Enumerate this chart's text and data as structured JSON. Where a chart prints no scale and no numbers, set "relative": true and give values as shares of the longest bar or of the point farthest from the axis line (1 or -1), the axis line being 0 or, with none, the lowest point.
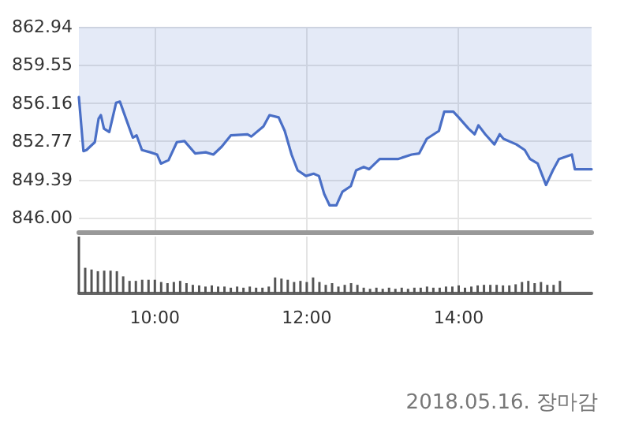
{
  "chart_data": [
    {
      "type": "line",
      "x": [
        9.0,
        9.06,
        9.1,
        9.21,
        9.26,
        9.29,
        9.33,
        9.4,
        9.49,
        9.54,
        9.63,
        9.71,
        9.76,
        9.83,
        9.94,
        10.03,
        10.08,
        10.18,
        10.29,
        10.39,
        10.53,
        10.67,
        10.77,
        10.88,
        11.0,
        11.22,
        11.27,
        11.43,
        11.51,
        11.63,
        11.71,
        11.8,
        11.88,
        11.99,
        12.09,
        12.16,
        12.23,
        12.3,
        12.39,
        12.47,
        12.58,
        12.65,
        12.75,
        12.82,
        12.96,
        13.2,
        13.38,
        13.48,
        13.58,
        13.74,
        13.81,
        13.93,
        14.0,
        14.13,
        14.21,
        14.26,
        14.35,
        14.47,
        14.54,
        14.59,
        14.76,
        14.87,
        14.94,
        15.04,
        15.15,
        15.24,
        15.32,
        15.49,
        15.53,
        15.75
      ],
      "series": [
        {
          "color": "#4a6fc6",
          "upper": [
            862.94,
            862.94,
            862.94,
            862.94,
            862.94,
            862.94,
            862.94,
            862.94,
            862.94,
            862.94,
            862.94,
            862.94,
            862.94,
            862.94,
            862.94,
            862.94,
            862.94,
            862.94,
            862.94,
            862.94,
            862.94,
            862.94,
            862.94,
            862.94,
            862.94,
            862.94,
            862.94,
            862.94,
            862.94,
            862.94,
            862.94,
            862.94,
            862.94,
            862.94,
            862.94,
            862.94,
            862.94,
            862.94,
            862.94,
            862.94,
            862.94,
            862.94,
            862.94,
            862.94,
            862.94,
            862.94,
            862.94,
            862.94,
            862.94,
            862.94,
            862.94,
            862.94,
            862.94,
            862.94,
            862.94,
            862.94,
            862.94,
            862.94,
            862.94,
            862.94,
            862.94,
            862.94,
            862.94,
            862.94,
            862.94,
            862.94,
            862.94,
            862.94,
            862.94,
            862.94
          ],
          "lower": [
            856.7,
            851.9,
            852.0,
            852.7,
            854.8,
            855.1,
            853.9,
            853.6,
            856.2,
            856.3,
            854.6,
            853.1,
            853.3,
            852.0,
            851.8,
            851.6,
            850.8,
            851.1,
            852.7,
            852.8,
            851.7,
            851.8,
            851.6,
            852.3,
            853.3,
            853.4,
            853.2,
            854.1,
            855.1,
            854.9,
            853.7,
            851.6,
            850.2,
            849.7,
            849.9,
            849.7,
            848.1,
            847.1,
            847.1,
            848.3,
            848.8,
            850.2,
            850.5,
            850.3,
            851.2,
            851.2,
            851.6,
            851.7,
            853.0,
            853.7,
            855.4,
            855.4,
            854.9,
            853.9,
            853.4,
            854.2,
            853.4,
            852.5,
            853.4,
            853.0,
            852.5,
            852.0,
            851.2,
            850.8,
            848.9,
            850.2,
            851.2,
            851.6,
            850.3,
            850.3
          ],
          "values": [
            856.7,
            851.9,
            852.0,
            852.7,
            854.8,
            855.1,
            853.9,
            853.6,
            856.2,
            856.3,
            854.6,
            853.1,
            853.3,
            852.0,
            851.8,
            851.6,
            850.8,
            851.1,
            852.7,
            852.8,
            851.7,
            851.8,
            851.6,
            852.3,
            853.3,
            853.4,
            853.2,
            854.1,
            855.1,
            854.9,
            853.7,
            851.6,
            850.2,
            849.7,
            849.9,
            849.7,
            848.1,
            847.1,
            847.1,
            848.3,
            848.8,
            850.2,
            850.5,
            850.3,
            851.2,
            851.2,
            851.6,
            851.7,
            853.0,
            853.7,
            855.4,
            855.4,
            854.9,
            853.9,
            853.4,
            854.2,
            853.4,
            852.5,
            853.4,
            853.0,
            852.5,
            852.0,
            851.2,
            850.8,
            848.9,
            850.2,
            851.2,
            851.6,
            850.3,
            850.3
          ]
        }
      ],
      "xlim": [
        9,
        15.75
      ],
      "xticks": [
        {
          "value": 10,
          "label": null
        },
        {
          "value": 12,
          "label": null
        },
        {
          "value": 14,
          "label": null
        }
      ],
      "ylim": [
        844.74,
        862.94
      ],
      "yticks": [
        {
          "value": 846,
          "label": "846.00"
        },
        849.39,
        852.77,
        856.16,
        859.55,
        862.94
      ],
      "tick_labels": "y",
      "grid": true,
      "marker": "none",
      "line_style": "solid"
    },
    {
      "type": "bar",
      "relative": true,
      "x": [
        9.0,
        9.0833,
        9.1667,
        9.25,
        9.3333,
        9.4167,
        9.5,
        9.5833,
        9.6667,
        9.75,
        9.8333,
        9.9167,
        10.0,
        10.0833,
        10.1667,
        10.25,
        10.3333,
        10.4167,
        10.5,
        10.5833,
        10.6667,
        10.75,
        10.8333,
        10.9167,
        11.0,
        11.0833,
        11.1667,
        11.25,
        11.3333,
        11.4167,
        11.5,
        11.5833,
        11.6667,
        11.75,
        11.8333,
        11.9167,
        12.0,
        12.0833,
        12.1667,
        12.25,
        12.3333,
        12.4167,
        12.5,
        12.5833,
        12.6667,
        12.75,
        12.8333,
        12.9167,
        13.0,
        13.0833,
        13.1667,
        13.25,
        13.3333,
        13.4167,
        13.5,
        13.5833,
        13.6667,
        13.75,
        13.8333,
        13.9167,
        14.0,
        14.0833,
        14.1667,
        14.25,
        14.3333,
        14.4167,
        14.5,
        14.5833,
        14.6667,
        14.75,
        14.8333,
        14.9167,
        15.0,
        15.0833,
        15.1667,
        15.25,
        15.3333
      ],
      "series": [
        {
          "color": "#555555",
          "values": [
            1.0,
            0.45,
            0.42,
            0.39,
            0.4,
            0.4,
            0.39,
            0.3,
            0.22,
            0.22,
            0.24,
            0.24,
            0.24,
            0.2,
            0.18,
            0.2,
            0.22,
            0.18,
            0.15,
            0.14,
            0.12,
            0.14,
            0.12,
            0.12,
            0.1,
            0.12,
            0.1,
            0.12,
            0.1,
            0.1,
            0.12,
            0.28,
            0.26,
            0.24,
            0.2,
            0.22,
            0.2,
            0.28,
            0.2,
            0.15,
            0.18,
            0.12,
            0.15,
            0.18,
            0.15,
            0.1,
            0.08,
            0.1,
            0.08,
            0.1,
            0.08,
            0.1,
            0.08,
            0.1,
            0.1,
            0.12,
            0.1,
            0.1,
            0.12,
            0.12,
            0.14,
            0.1,
            0.12,
            0.14,
            0.15,
            0.15,
            0.15,
            0.14,
            0.14,
            0.16,
            0.2,
            0.22,
            0.18,
            0.2,
            0.15,
            0.15,
            0.22
          ]
        }
      ],
      "xlim": [
        9,
        15.75
      ],
      "xticks": [
        {
          "value": 10,
          "label": "10:00"
        },
        {
          "value": 12,
          "label": "12:00"
        },
        {
          "value": 14,
          "label": "14:00"
        }
      ],
      "tick_labels": "x",
      "grid": "x",
      "annotations": [
        "2018.05.16. 장마감"
      ]
    }
  ]
}
